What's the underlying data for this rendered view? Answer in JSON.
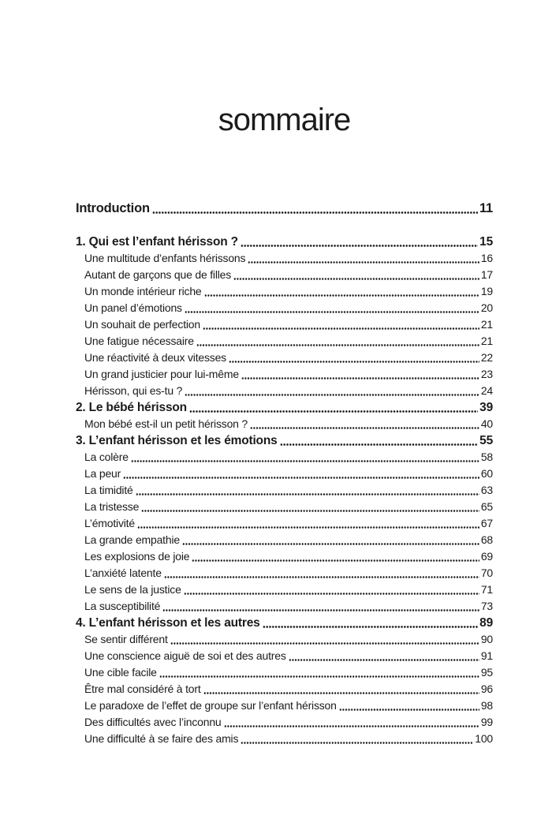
{
  "page": {
    "title": "sommaire",
    "text_color": "#1b1b1b",
    "background": "#ffffff"
  },
  "toc": {
    "entries": [
      {
        "label": "Introduction",
        "page": "11",
        "level": "intro",
        "space_after": true
      },
      {
        "label": "1. Qui est l’enfant hérisson ?",
        "page": "15",
        "level": "chapter"
      },
      {
        "label": "Une multitude d’enfants hérissons",
        "page": "16",
        "level": "sub"
      },
      {
        "label": "Autant de garçons que de filles",
        "page": "17",
        "level": "sub"
      },
      {
        "label": "Un monde intérieur riche",
        "page": "19",
        "level": "sub"
      },
      {
        "label": "Un panel d’émotions",
        "page": "20",
        "level": "sub"
      },
      {
        "label": "Un souhait de perfection",
        "page": "21",
        "level": "sub"
      },
      {
        "label": "Une fatigue nécessaire",
        "page": "21",
        "level": "sub"
      },
      {
        "label": "Une réactivité à deux vitesses",
        "page": "22",
        "level": "sub"
      },
      {
        "label": "Un grand justicier pour lui-même",
        "page": "23",
        "level": "sub"
      },
      {
        "label": "Hérisson, qui es-tu ?",
        "page": "24",
        "level": "sub"
      },
      {
        "label": "2. Le bébé hérisson",
        "page": "39",
        "level": "chapter"
      },
      {
        "label": "Mon bébé est-il un petit hérisson ?",
        "page": "40",
        "level": "sub"
      },
      {
        "label": "3. L’enfant hérisson et les émotions",
        "page": "55",
        "level": "chapter"
      },
      {
        "label": "La colère",
        "page": "58",
        "level": "sub"
      },
      {
        "label": "La peur",
        "page": "60",
        "level": "sub"
      },
      {
        "label": "La timidité",
        "page": "63",
        "level": "sub"
      },
      {
        "label": "La tristesse",
        "page": "65",
        "level": "sub"
      },
      {
        "label": "L’émotivité",
        "page": "67",
        "level": "sub"
      },
      {
        "label": "La grande empathie",
        "page": "68",
        "level": "sub"
      },
      {
        "label": "Les explosions de joie",
        "page": "69",
        "level": "sub"
      },
      {
        "label": "L’anxiété latente",
        "page": "70",
        "level": "sub"
      },
      {
        "label": "Le sens de la justice",
        "page": "71",
        "level": "sub"
      },
      {
        "label": "La susceptibilité",
        "page": "73",
        "level": "sub"
      },
      {
        "label": "4. L’enfant hérisson et les autres",
        "page": "89",
        "level": "chapter"
      },
      {
        "label": "Se sentir différent",
        "page": "90",
        "level": "sub"
      },
      {
        "label": "Une conscience aiguë de soi et des autres",
        "page": "91",
        "level": "sub"
      },
      {
        "label": "Une cible facile",
        "page": "95",
        "level": "sub"
      },
      {
        "label": "Être mal considéré à tort",
        "page": "96",
        "level": "sub"
      },
      {
        "label": "Le paradoxe de l’effet de groupe sur l’enfant hérisson",
        "page": "98",
        "level": "sub"
      },
      {
        "label": "Des difficultés avec l’inconnu",
        "page": "99",
        "level": "sub"
      },
      {
        "label": "Une difficulté à se faire des amis",
        "page": "100",
        "level": "sub"
      }
    ]
  }
}
